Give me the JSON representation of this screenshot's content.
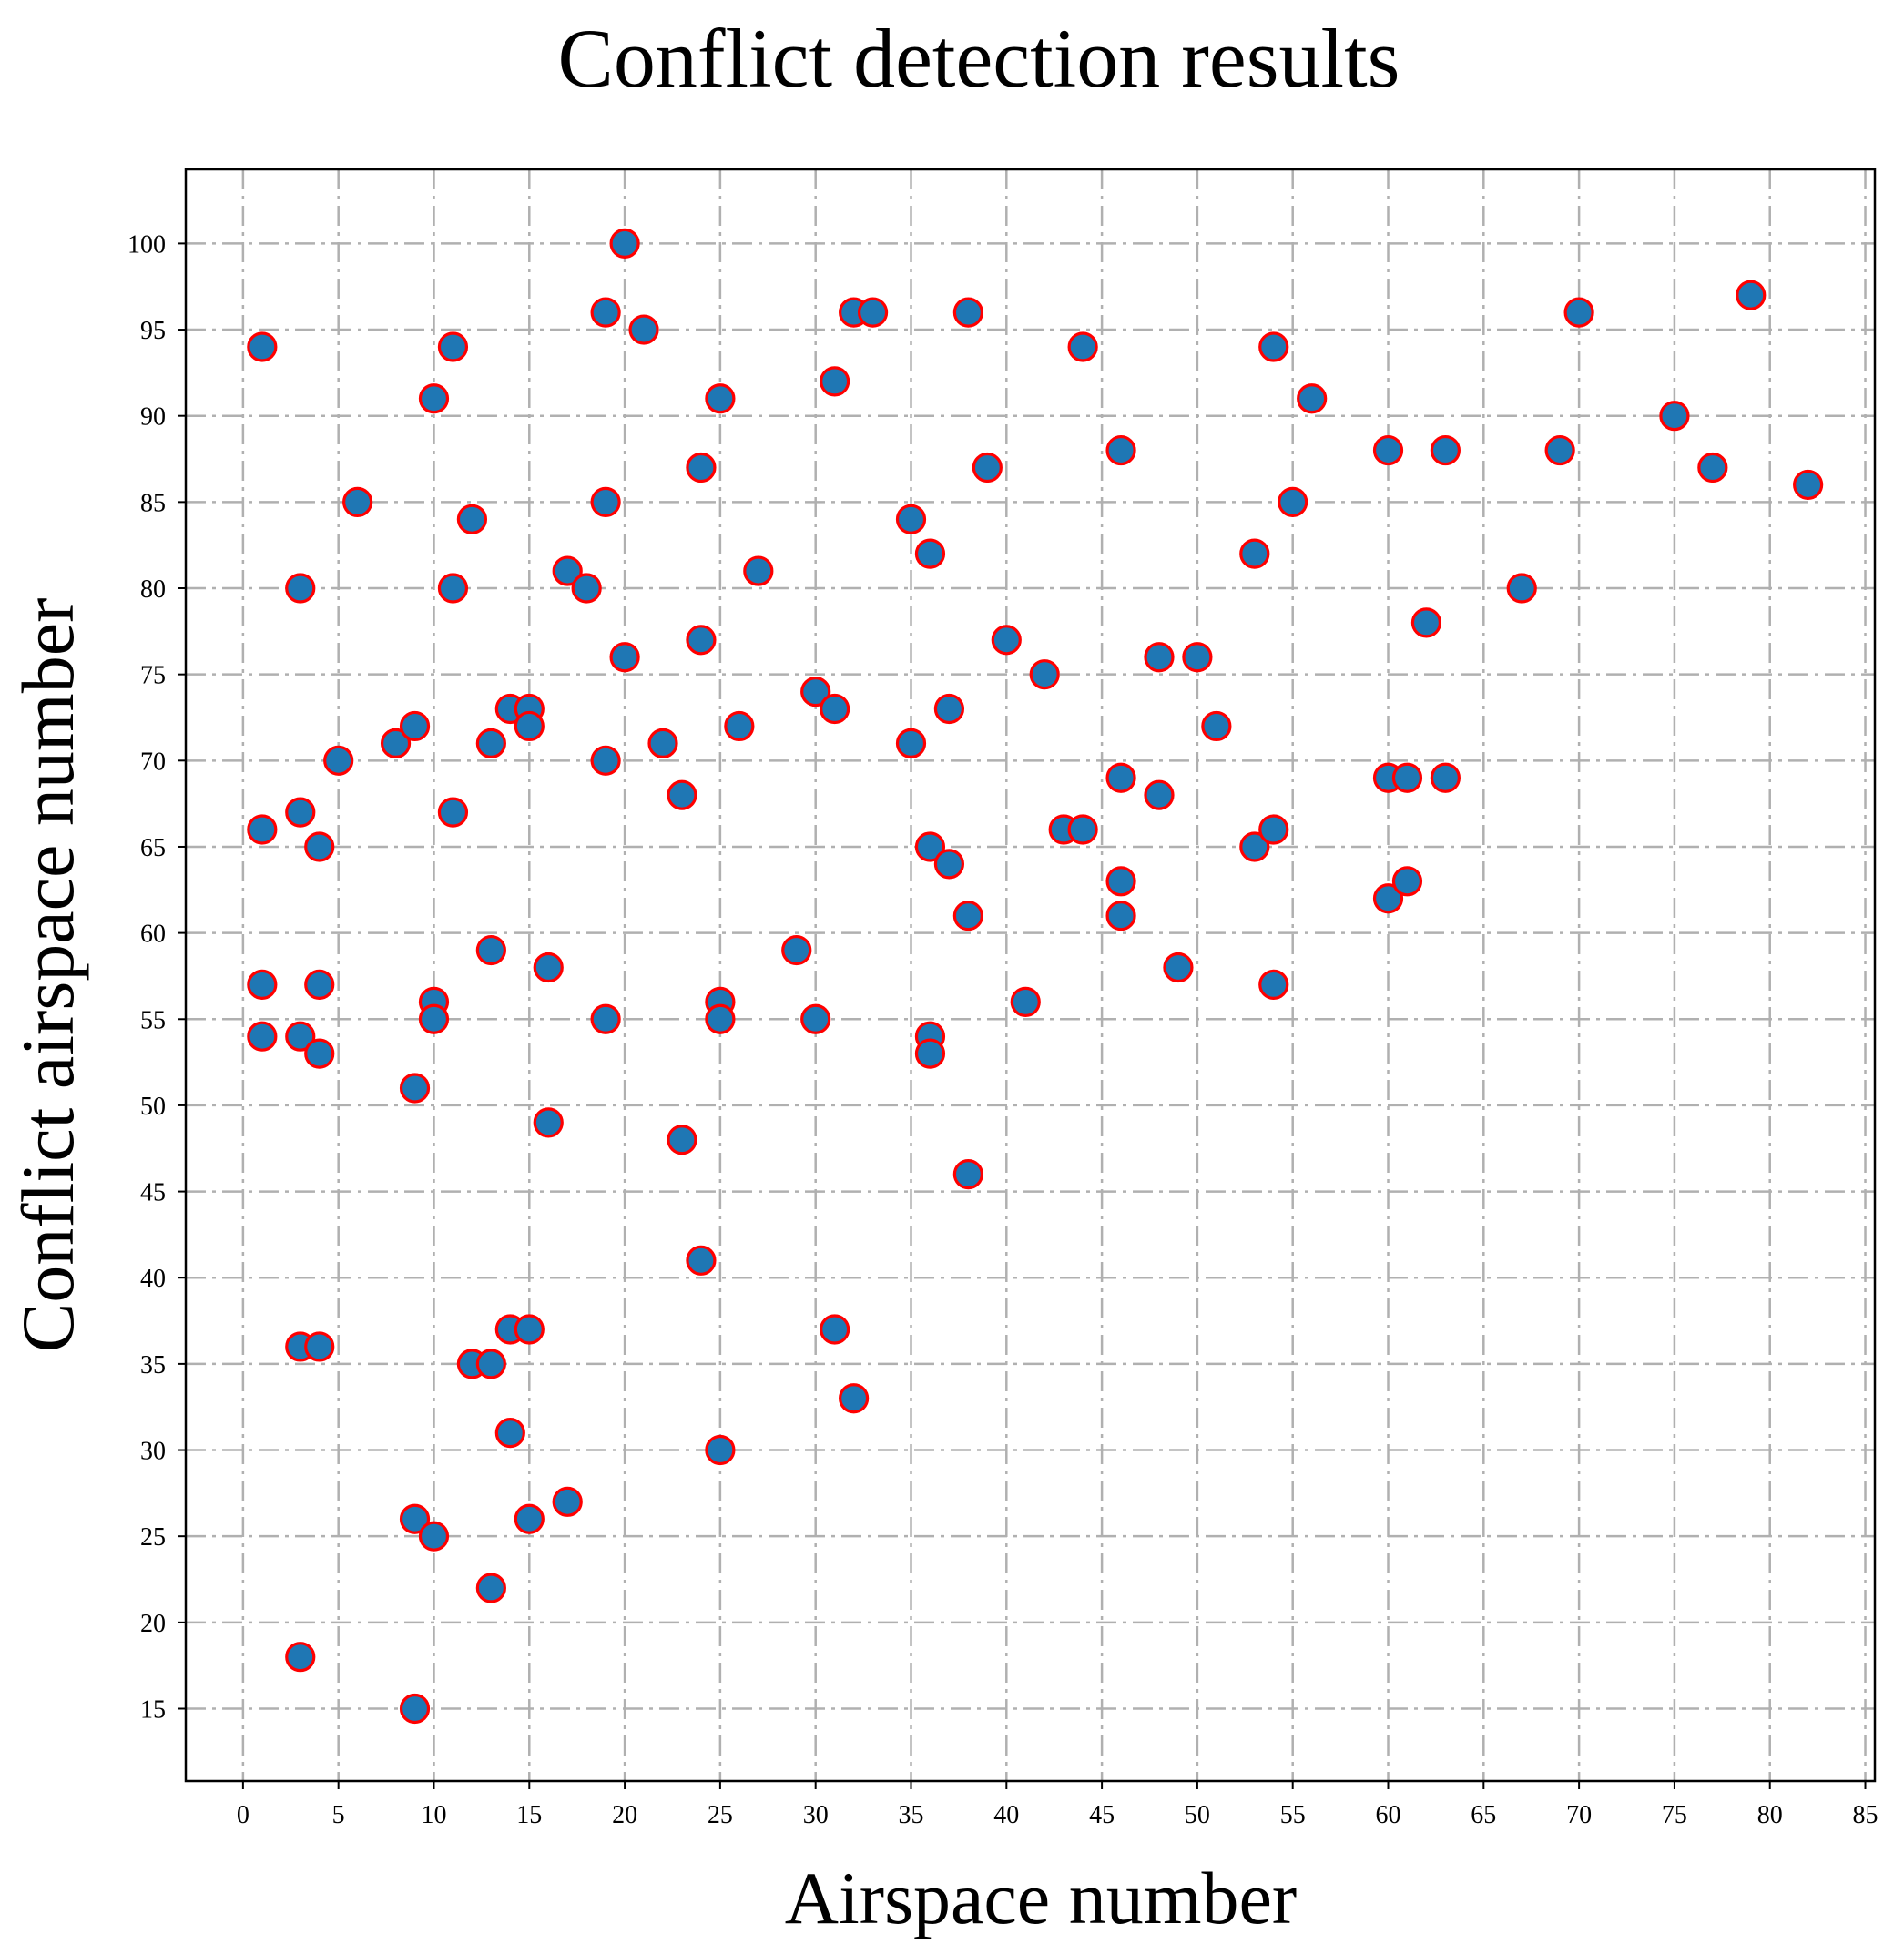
{
  "chart_data": {
    "type": "scatter",
    "title": "Conflict detection results",
    "xlabel": "Airspace number",
    "ylabel": "Conflict airspace number",
    "xlim": [
      -3,
      85.5
    ],
    "ylim": [
      10.8,
      104.3
    ],
    "xticks": [
      0,
      5,
      10,
      15,
      20,
      25,
      30,
      35,
      40,
      45,
      50,
      55,
      60,
      65,
      70,
      75,
      80,
      85
    ],
    "yticks": [
      15,
      20,
      25,
      30,
      35,
      40,
      45,
      50,
      55,
      60,
      65,
      70,
      75,
      80,
      85,
      90,
      95,
      100
    ],
    "grid": true,
    "marker": {
      "face_color": "#1f77b4",
      "edge_color": "#ff0000"
    },
    "x": [
      1,
      1,
      1,
      1,
      3,
      3,
      3,
      3,
      3,
      4,
      4,
      4,
      4,
      5,
      6,
      8,
      9,
      9,
      9,
      9,
      10,
      10,
      10,
      10,
      11,
      11,
      11,
      12,
      12,
      13,
      13,
      13,
      13,
      14,
      14,
      14,
      15,
      15,
      15,
      15,
      16,
      16,
      17,
      17,
      18,
      19,
      19,
      19,
      19,
      20,
      20,
      21,
      22,
      23,
      23,
      24,
      24,
      24,
      25,
      25,
      25,
      25,
      26,
      27,
      29,
      30,
      30,
      31,
      31,
      31,
      32,
      32,
      33,
      35,
      35,
      36,
      36,
      36,
      36,
      37,
      37,
      38,
      38,
      38,
      39,
      40,
      41,
      42,
      43,
      44,
      44,
      46,
      46,
      46,
      46,
      48,
      48,
      49,
      50,
      51,
      53,
      53,
      54,
      54,
      54,
      55,
      56,
      60,
      60,
      60,
      61,
      61,
      62,
      63,
      63,
      67,
      69,
      70,
      75,
      77,
      79,
      82
    ],
    "y": [
      94,
      66,
      57,
      54,
      80,
      67,
      54,
      36,
      18,
      65,
      57,
      53,
      36,
      70,
      85,
      71,
      72,
      51,
      26,
      15,
      91,
      56,
      55,
      25,
      94,
      80,
      67,
      84,
      35,
      71,
      59,
      35,
      22,
      73,
      37,
      31,
      73,
      72,
      37,
      26,
      58,
      49,
      81,
      27,
      80,
      96,
      85,
      70,
      55,
      100,
      76,
      95,
      71,
      68,
      48,
      87,
      77,
      41,
      91,
      56,
      55,
      30,
      72,
      81,
      59,
      74,
      55,
      92,
      73,
      37,
      96,
      33,
      96,
      84,
      71,
      82,
      65,
      54,
      53,
      73,
      64,
      96,
      61,
      46,
      87,
      77,
      56,
      75,
      66,
      94,
      66,
      88,
      69,
      63,
      61,
      76,
      68,
      58,
      76,
      72,
      82,
      65,
      94,
      66,
      57,
      85,
      91,
      88,
      69,
      62,
      69,
      63,
      78,
      88,
      69,
      80,
      88,
      96,
      90,
      87,
      97,
      86
    ]
  }
}
